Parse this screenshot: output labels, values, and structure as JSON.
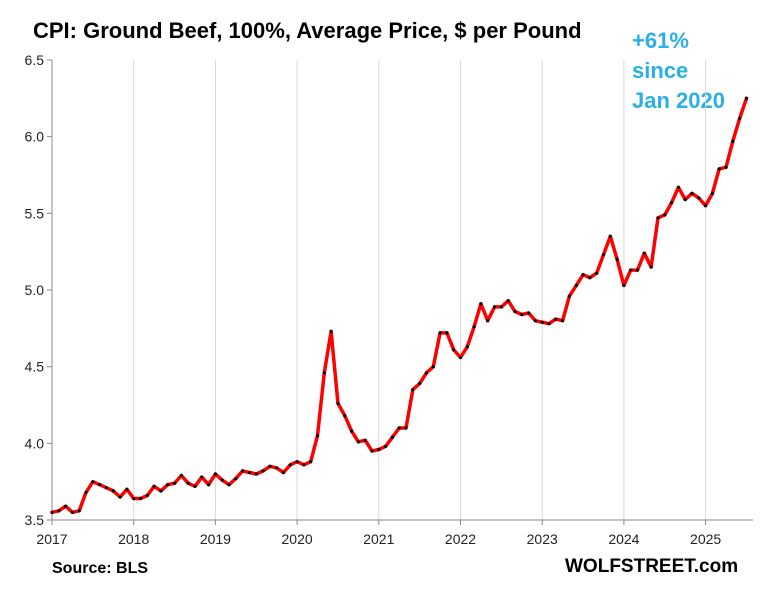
{
  "chart_data": {
    "type": "line",
    "title": "CPI: Ground Beef, 100%, Average Price, $ per Pound",
    "xlabel": "",
    "ylabel": "",
    "xlim": [
      2017,
      2025.58
    ],
    "ylim": [
      3.5,
      6.5
    ],
    "yticks": [
      "3.5",
      "4.0",
      "4.5",
      "5.0",
      "5.5",
      "6.0",
      "6.5"
    ],
    "xticks": [
      "2017",
      "2018",
      "2019",
      "2020",
      "2021",
      "2022",
      "2023",
      "2024",
      "2025"
    ],
    "grid": "vertical",
    "annotation": [
      "+61% since",
      "Jan 2020"
    ],
    "line_color": "#ff0000",
    "marker_color": "#000000",
    "annotation_color": "#2ab0e6",
    "series": [
      {
        "x_start": "2017-01",
        "frequency": "monthly",
        "values": [
          3.55,
          3.56,
          3.59,
          3.55,
          3.56,
          3.68,
          3.75,
          3.73,
          3.71,
          3.69,
          3.65,
          3.7,
          3.64,
          3.64,
          3.66,
          3.72,
          3.69,
          3.73,
          3.74,
          3.79,
          3.74,
          3.72,
          3.78,
          3.73,
          3.8,
          3.76,
          3.73,
          3.77,
          3.82,
          3.81,
          3.8,
          3.82,
          3.85,
          3.84,
          3.81,
          3.86,
          3.88,
          3.86,
          3.88,
          4.05,
          4.46,
          4.73,
          4.26,
          4.18,
          4.08,
          4.01,
          4.02,
          3.95,
          3.96,
          3.98,
          4.04,
          4.1,
          4.1,
          4.35,
          4.39,
          4.46,
          4.5,
          4.72,
          4.72,
          4.61,
          4.56,
          4.63,
          4.76,
          4.91,
          4.8,
          4.89,
          4.89,
          4.93,
          4.86,
          4.84,
          4.85,
          4.8,
          4.79,
          4.78,
          4.81,
          4.8,
          4.96,
          5.03,
          5.1,
          5.08,
          5.11,
          5.23,
          5.35,
          5.2,
          5.03,
          5.13,
          5.13,
          5.24,
          5.15,
          5.47,
          5.49,
          5.57,
          5.67,
          5.59,
          5.63,
          5.6,
          5.55,
          5.63,
          5.79,
          5.8,
          5.97,
          6.12,
          6.25
        ]
      }
    ]
  },
  "footer": {
    "source": "Source: BLS",
    "brand": "WOLFSTREET.com"
  }
}
